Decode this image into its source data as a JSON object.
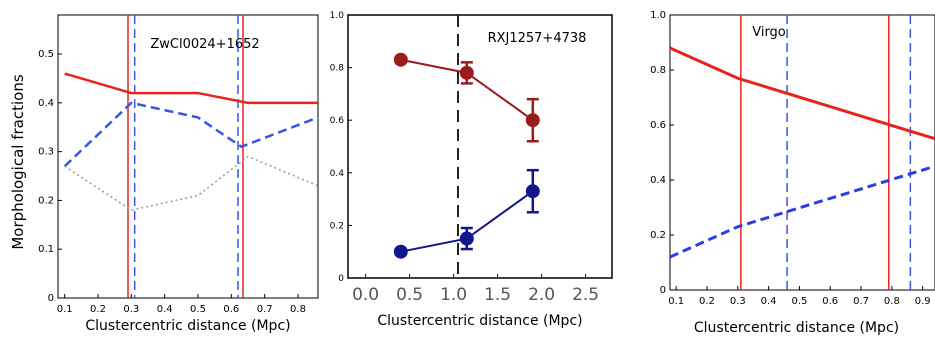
{
  "figure": {
    "ylabel": "Morphological fractions"
  },
  "chart_data": [
    {
      "type": "line",
      "title": "ZwCl0024+1652",
      "xlabel": "Clustercentric distance (Mpc)",
      "ylabel": "Morphological fractions",
      "xlim": [
        0.08,
        0.86
      ],
      "ylim": [
        0,
        0.58
      ],
      "x_ticks": [
        "0.1",
        "0.2",
        "0.3",
        "0.4",
        "0.5",
        "0.6",
        "0.7",
        "0.8"
      ],
      "y_ticks": [
        "0",
        "0.1",
        "0.2",
        "0.3",
        "0.4",
        "0.5"
      ],
      "series": [
        {
          "style": "solid",
          "color": "#e8231e",
          "x": [
            0.1,
            0.3,
            0.5,
            0.65,
            0.86
          ],
          "y": [
            0.46,
            0.42,
            0.42,
            0.4,
            0.4
          ]
        },
        {
          "style": "dashed",
          "color": "#3a55e6",
          "x": [
            0.1,
            0.3,
            0.5,
            0.63,
            0.86
          ],
          "y": [
            0.27,
            0.4,
            0.37,
            0.31,
            0.37
          ]
        },
        {
          "style": "dotted",
          "color": "#999999",
          "x": [
            0.1,
            0.3,
            0.5,
            0.65,
            0.86
          ],
          "y": [
            0.27,
            0.18,
            0.21,
            0.29,
            0.23
          ]
        }
      ],
      "vlines": [
        {
          "x": 0.29,
          "style": "solid",
          "color": "#e8231e"
        },
        {
          "x": 0.31,
          "style": "dashed",
          "color": "#3a55e6"
        },
        {
          "x": 0.62,
          "style": "dashed",
          "color": "#3a55e6"
        },
        {
          "x": 0.635,
          "style": "solid",
          "color": "#e8231e"
        }
      ]
    },
    {
      "type": "scatter",
      "title": "RXJ1257+4738",
      "xlabel": "Clustercentric distance (Mpc)",
      "xlim": [
        -0.2,
        2.8
      ],
      "ylim": [
        0,
        1.0
      ],
      "x_ticks": [
        "0.0",
        "0.5",
        "1.0",
        "1.5",
        "2.0",
        "2.5"
      ],
      "y_ticks": [
        "0",
        "0.2",
        "0.4",
        "0.6",
        "0.8",
        "1.0"
      ],
      "series": [
        {
          "color": "#9b1c1c",
          "x": [
            0.4,
            1.15,
            1.9
          ],
          "y": [
            0.83,
            0.78,
            0.6
          ],
          "yerr": [
            0.0,
            0.04,
            0.08
          ]
        },
        {
          "color": "#13158e",
          "x": [
            0.4,
            1.15,
            1.9
          ],
          "y": [
            0.1,
            0.15,
            0.33
          ],
          "yerr": [
            0.0,
            0.04,
            0.08
          ]
        }
      ],
      "vlines": [
        {
          "x": 1.05,
          "style": "dashed",
          "color": "#222222"
        }
      ]
    },
    {
      "type": "line",
      "title": "Virgo",
      "xlabel": "Clustercentric distance (Mpc)",
      "xlim": [
        0.08,
        0.94
      ],
      "ylim": [
        0,
        1.0
      ],
      "x_ticks": [
        "0.1",
        "0.2",
        "0.3",
        "0.4",
        "0.5",
        "0.6",
        "0.7",
        "0.8",
        "0.9"
      ],
      "y_ticks": [
        "0",
        "0.2",
        "0.4",
        "0.6",
        "0.8",
        "1.0"
      ],
      "series": [
        {
          "style": "solid",
          "color": "#e8231e",
          "x": [
            0.08,
            0.3,
            0.94
          ],
          "y": [
            0.88,
            0.77,
            0.55
          ]
        },
        {
          "style": "dashed",
          "color": "#2b3fe0",
          "x": [
            0.08,
            0.3,
            0.94
          ],
          "y": [
            0.12,
            0.23,
            0.45
          ]
        }
      ],
      "vlines": [
        {
          "x": 0.31,
          "style": "solid",
          "color": "#e8231e"
        },
        {
          "x": 0.46,
          "style": "dashed",
          "color": "#3a55e6"
        },
        {
          "x": 0.79,
          "style": "solid",
          "color": "#e8231e"
        },
        {
          "x": 0.86,
          "style": "dashed",
          "color": "#3a55e6"
        }
      ]
    }
  ]
}
